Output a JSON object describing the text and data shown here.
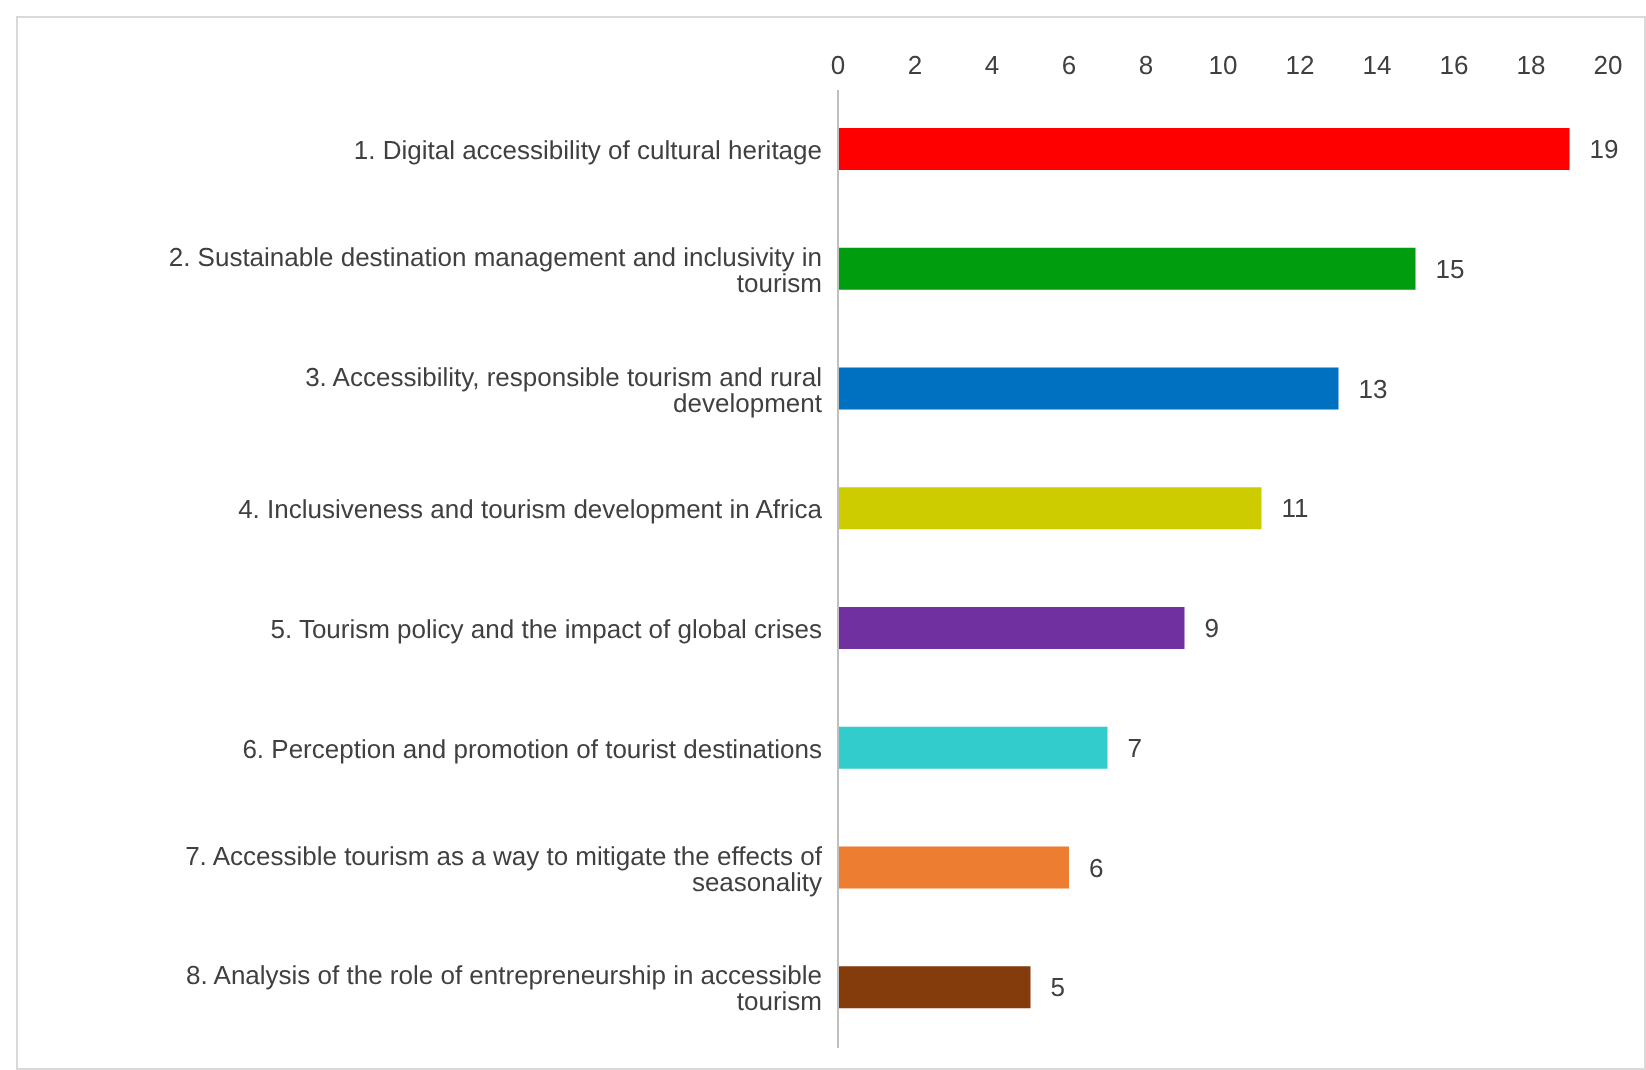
{
  "chart_data": {
    "type": "bar",
    "orientation": "horizontal",
    "categories": [
      "1. Digital accessibility of cultural heritage",
      "2. Sustainable destination management and inclusivity in tourism",
      "3. Accessibility, responsible tourism and rural development",
      "4. Inclusiveness and tourism development in Africa",
      "5. Tourism policy and the impact of global crises",
      "6. Perception and promotion of tourist destinations",
      "7. Accessible tourism as a way to mitigate the effects of seasonality",
      "8. Analysis of the role of entrepreneurship in accessible tourism"
    ],
    "values": [
      19,
      15,
      13,
      11,
      9,
      7,
      6,
      5
    ],
    "colors": [
      "#ff0000",
      "#009e0f",
      "#0070c0",
      "#cccc00",
      "#7030a0",
      "#33cccc",
      "#ed7d31",
      "#843c0c"
    ],
    "xlim": [
      0,
      20
    ],
    "xticks": [
      0,
      2,
      4,
      6,
      8,
      10,
      12,
      14,
      16,
      18,
      20
    ],
    "data_labels": true
  }
}
